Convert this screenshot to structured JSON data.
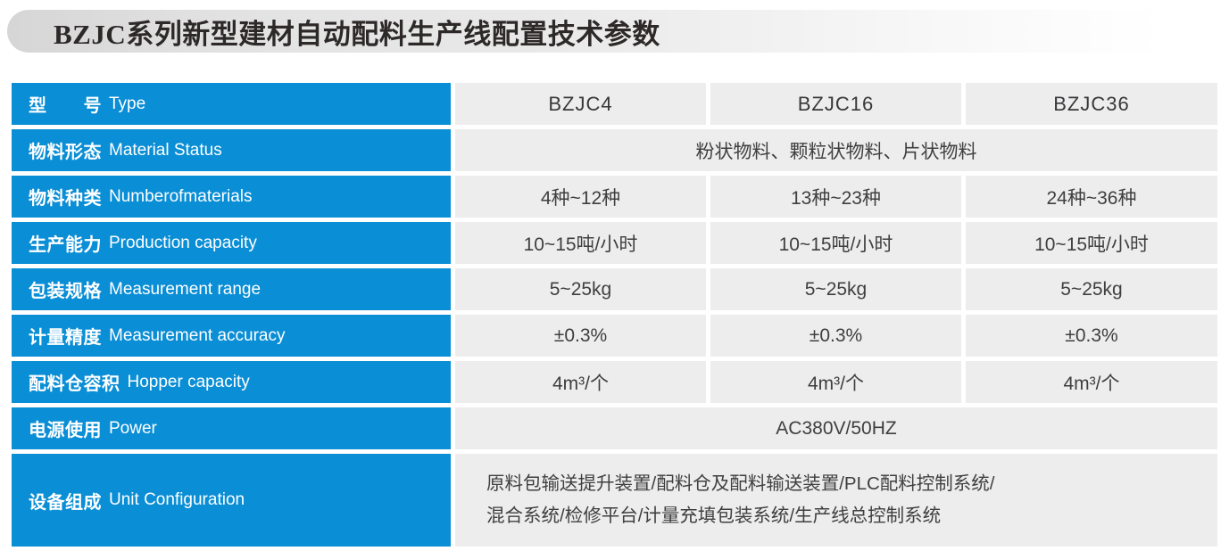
{
  "page": {
    "title": "BZJC系列新型建材自动配料生产线配置技术参数"
  },
  "colors": {
    "accent_blue": "#0a8ed5",
    "cell_gray": "#ededee",
    "title_text": "#2e2929",
    "value_text": "#3f3f3f"
  },
  "table": {
    "columns": [
      "BZJC4",
      "BZJC16",
      "BZJC36"
    ],
    "rows": [
      {
        "zh": "型　　号",
        "en": "Type"
      },
      {
        "zh": "物料形态",
        "en": "Material Status",
        "span": "粉状物料、颗粒状物料、片状物料"
      },
      {
        "zh": "物料种类",
        "en": "Numberofmaterials",
        "values": [
          "4种~12种",
          "13种~23种",
          "24种~36种"
        ]
      },
      {
        "zh": "生产能力",
        "en": "Production capacity",
        "values": [
          "10~15吨/小时",
          "10~15吨/小时",
          "10~15吨/小时"
        ]
      },
      {
        "zh": "包装规格",
        "en": "Measurement range",
        "values": [
          "5~25kg",
          "5~25kg",
          "5~25kg"
        ]
      },
      {
        "zh": "计量精度",
        "en": "Measurement accuracy",
        "values": [
          "±0.3%",
          "±0.3%",
          "±0.3%"
        ]
      },
      {
        "zh": "配料仓容积",
        "en": "Hopper capacity",
        "values": [
          "4m³/个",
          "4m³/个",
          "4m³/个"
        ]
      },
      {
        "zh": "电源使用",
        "en": "Power",
        "span": "AC380V/50HZ"
      },
      {
        "zh": "设备组成",
        "en": "Unit Configuration",
        "span_lines": [
          "原料包输送提升装置/配料仓及配料输送装置/PLC配料控制系统/",
          "混合系统/检修平台/计量充填包装系统/生产线总控制系统"
        ]
      }
    ]
  }
}
